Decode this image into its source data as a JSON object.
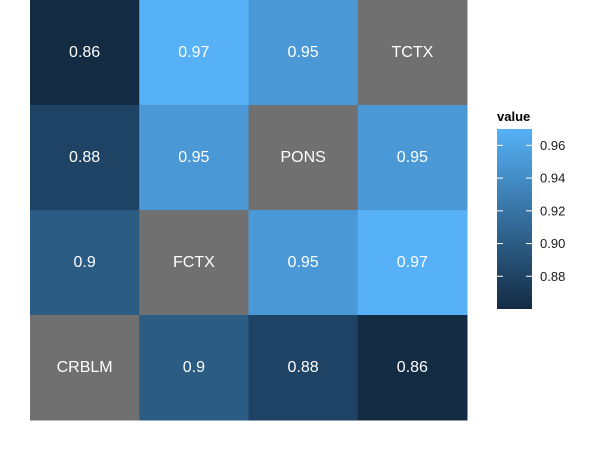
{
  "chart_data": {
    "type": "heatmap",
    "columns": 4,
    "rows": 4,
    "cells": [
      [
        0.86,
        0.97,
        0.95,
        "TCTX"
      ],
      [
        0.88,
        0.95,
        "PONS",
        0.95
      ],
      [
        0.9,
        "FCTX",
        0.95,
        0.97
      ],
      [
        "CRBLM",
        0.9,
        0.88,
        0.86
      ]
    ],
    "cell_labels": [
      [
        "0.86",
        "0.97",
        "0.95",
        "TCTX"
      ],
      [
        "0.88",
        "0.95",
        "PONS",
        "0.95"
      ],
      [
        "0.9",
        "FCTX",
        "0.95",
        "0.97"
      ],
      [
        "CRBLM",
        "0.9",
        "0.88",
        "0.86"
      ]
    ],
    "diagonal_color": "#707070",
    "color_scale": {
      "low": 0.86,
      "high": 0.97,
      "low_color": "#132B43",
      "high_color": "#56B1F7"
    },
    "legend": {
      "title": "value",
      "ticks": [
        0.88,
        0.9,
        0.92,
        0.94,
        0.96
      ],
      "tick_labels": [
        "0.88",
        "0.90",
        "0.92",
        "0.94",
        "0.96"
      ],
      "placement": "right"
    }
  }
}
